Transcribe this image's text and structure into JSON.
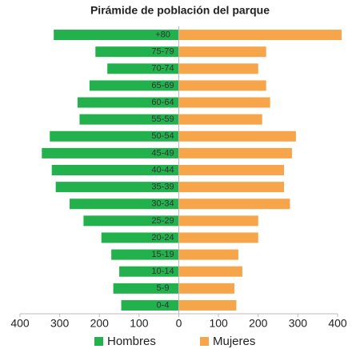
{
  "chart_data": {
    "type": "pyramid",
    "title": "Pirámide de población del parque",
    "categories": [
      "+80",
      "75-79",
      "70-74",
      "65-69",
      "60-64",
      "55-59",
      "50-54",
      "45-49",
      "40-44",
      "35-39",
      "30-34",
      "25-29",
      "20-24",
      "15-19",
      "10-14",
      "5-9",
      "0-4"
    ],
    "series": [
      {
        "name": "Hombres",
        "color": "#22b14c",
        "values": [
          -315,
          -210,
          -180,
          -225,
          -255,
          -250,
          -325,
          -345,
          -320,
          -310,
          -275,
          -240,
          -195,
          -170,
          -150,
          -165,
          -145
        ]
      },
      {
        "name": "Mujeres",
        "color": "#f7a54a",
        "values": [
          410,
          220,
          200,
          220,
          230,
          210,
          295,
          285,
          265,
          265,
          280,
          200,
          200,
          150,
          160,
          140,
          145
        ]
      }
    ],
    "xlim": [
      -400,
      400
    ],
    "xticks": [
      {
        "value": -400,
        "label": "400"
      },
      {
        "value": -300,
        "label": "300"
      },
      {
        "value": -200,
        "label": "200"
      },
      {
        "value": -100,
        "label": "100"
      },
      0,
      100,
      200,
      300,
      400
    ],
    "grid": false,
    "legend": "bottom"
  }
}
